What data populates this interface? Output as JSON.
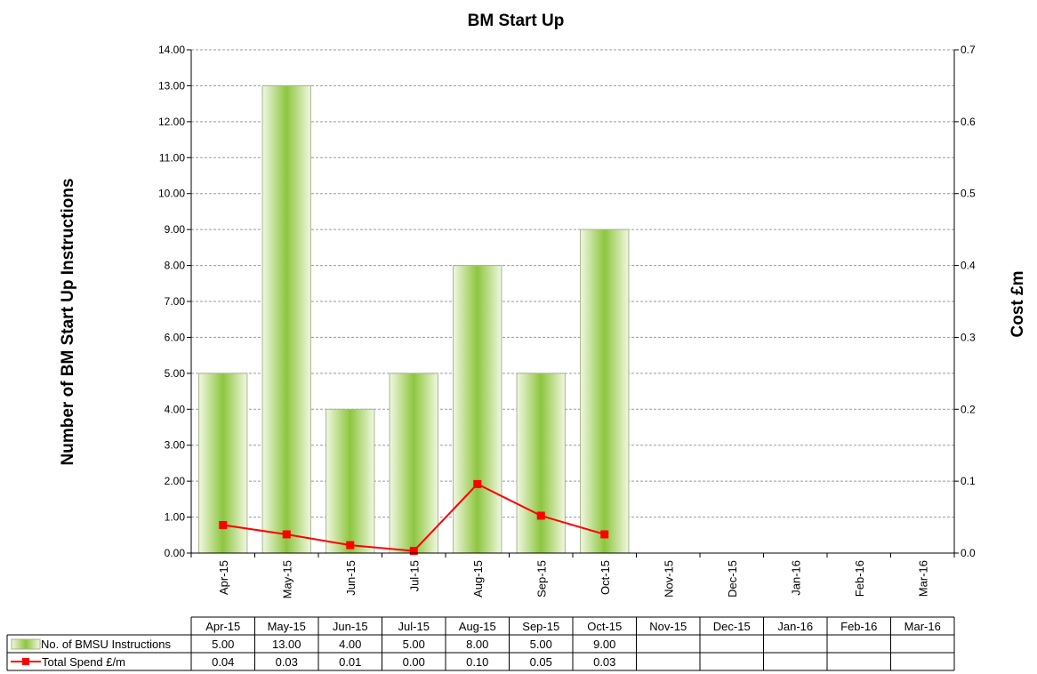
{
  "chart_data": {
    "type": "bar",
    "title": "BM Start Up",
    "categories": [
      "Apr-15",
      "May-15",
      "Jun-15",
      "Jul-15",
      "Aug-15",
      "Sep-15",
      "Oct-15",
      "Nov-15",
      "Dec-15",
      "Jan-16",
      "Feb-16",
      "Mar-16"
    ],
    "y_left": {
      "label": "Number of BM Start Up Instructions",
      "ylim": [
        0,
        14
      ],
      "ticks": [
        "0.00",
        "1.00",
        "2.00",
        "3.00",
        "4.00",
        "5.00",
        "6.00",
        "7.00",
        "8.00",
        "9.00",
        "10.00",
        "11.00",
        "12.00",
        "13.00",
        "14.00"
      ]
    },
    "y_right": {
      "label": "Cost £m",
      "ylim": [
        0,
        0.7
      ],
      "ticks": [
        "0.0",
        "0.1",
        "0.2",
        "0.3",
        "0.4",
        "0.5",
        "0.6",
        "0.7"
      ]
    },
    "grid": true,
    "series": [
      {
        "name": "No. of BMSU Instructions",
        "type": "bar",
        "axis": "left",
        "color": "#8dc63f",
        "values": [
          5,
          13,
          4,
          5,
          8,
          5,
          9,
          null,
          null,
          null,
          null,
          null
        ],
        "labels": [
          "5.00",
          "13.00",
          "4.00",
          "5.00",
          "8.00",
          "5.00",
          "9.00",
          "",
          "",
          "",
          "",
          ""
        ]
      },
      {
        "name": "Total Spend £/m",
        "type": "line",
        "axis": "right",
        "color": "#ff0000",
        "values": [
          0.039,
          0.026,
          0.011,
          0.003,
          0.096,
          0.052,
          0.026,
          null,
          null,
          null,
          null,
          null
        ],
        "labels": [
          "0.04",
          "0.03",
          "0.01",
          "0.00",
          "0.10",
          "0.05",
          "0.03",
          "",
          "",
          "",
          "",
          ""
        ]
      }
    ]
  }
}
